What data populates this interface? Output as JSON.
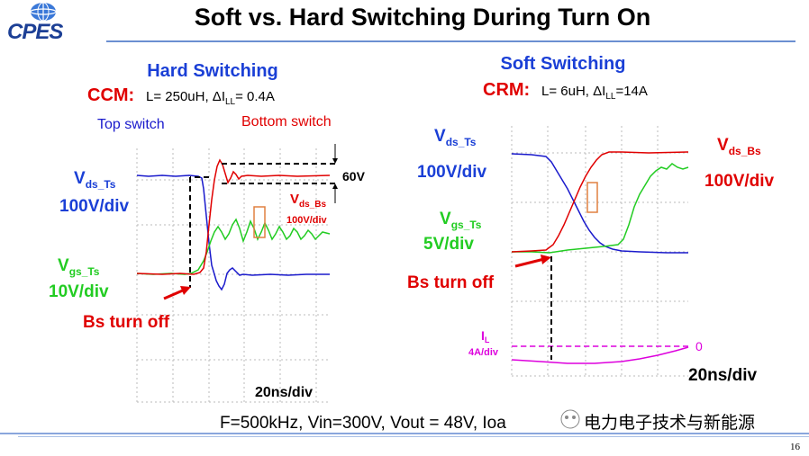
{
  "logo": {
    "text": "CPES"
  },
  "title": "Soft vs. Hard Switching During Turn On",
  "hard": {
    "heading": "Hard Switching",
    "mode": "CCM:",
    "params_a": "L= 250uH, ΔI",
    "params_sub": "LL",
    "params_b": "= 0.4A",
    "top_switch": "Top switch",
    "bottom_switch": "Bottom switch",
    "vds_ts_main": "V",
    "vds_ts_sub": "ds_Ts",
    "vds_ts_scale": "100V/div",
    "vgs_ts_main": "V",
    "vgs_ts_sub": "gs_Ts",
    "vgs_ts_scale": "10V/div",
    "bs_turn_off": "Bs turn off",
    "sixty_v": "60V",
    "vds_bs_main": "V",
    "vds_bs_sub": "ds_Bs",
    "vds_bs_scale": "100V/div",
    "timebase": "20ns/div"
  },
  "soft": {
    "heading": "Soft Switching",
    "mode": "CRM:",
    "params_a": "L= 6uH, ΔI",
    "params_sub": "LL",
    "params_b": "=14A",
    "vds_ts_main": "V",
    "vds_ts_sub": "ds_Ts",
    "vds_ts_scale": "100V/div",
    "vgs_ts_main": "V",
    "vgs_ts_sub": "gs_Ts",
    "vgs_ts_scale": "5V/div",
    "vds_bs_main": "V",
    "vds_bs_sub": "ds_Bs",
    "vds_bs_scale": "100V/div",
    "bs_turn_off": "Bs turn off",
    "il_main": "I",
    "il_sub": "L",
    "il_scale": "4A/div",
    "zero": "0",
    "timebase": "20ns/div"
  },
  "footer": {
    "conditions": "F=500kHz, Vin=300V, Vout = 48V, Ioa",
    "conditions_tail": "=",
    "watermark": "电力电子技术与新能源",
    "page": "16"
  },
  "colors": {
    "blue": "#1a1acc",
    "red": "#e00000",
    "green": "#22cc22",
    "magenta": "#dd00dd",
    "heading_blue": "#1a3fd6"
  }
}
